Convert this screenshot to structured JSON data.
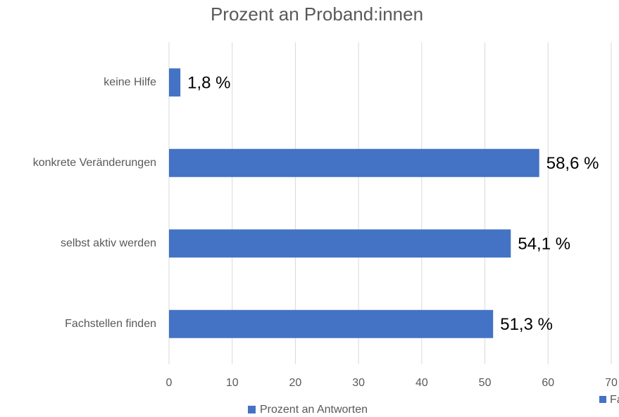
{
  "chart_data": {
    "type": "bar",
    "orientation": "horizontal",
    "title": "Prozent an Proband:innen",
    "categories": [
      "keine Hilfe",
      "konkrete Veränderungen",
      "selbst aktiv werden",
      "Fachstellen finden"
    ],
    "series": [
      {
        "name": "Prozent an Antworten",
        "color": "#4472c4",
        "values": [
          1.8,
          58.6,
          54.1,
          51.3
        ],
        "value_labels": [
          "1,8 %",
          "58,6 %",
          "54,1 %",
          "51,3 %"
        ]
      }
    ],
    "xlim": [
      0,
      70
    ],
    "xticks": [
      0,
      10,
      20,
      30,
      40,
      50,
      60,
      70
    ],
    "grid": true,
    "legend": "bottom",
    "clipped_legend_text": "Fa"
  }
}
